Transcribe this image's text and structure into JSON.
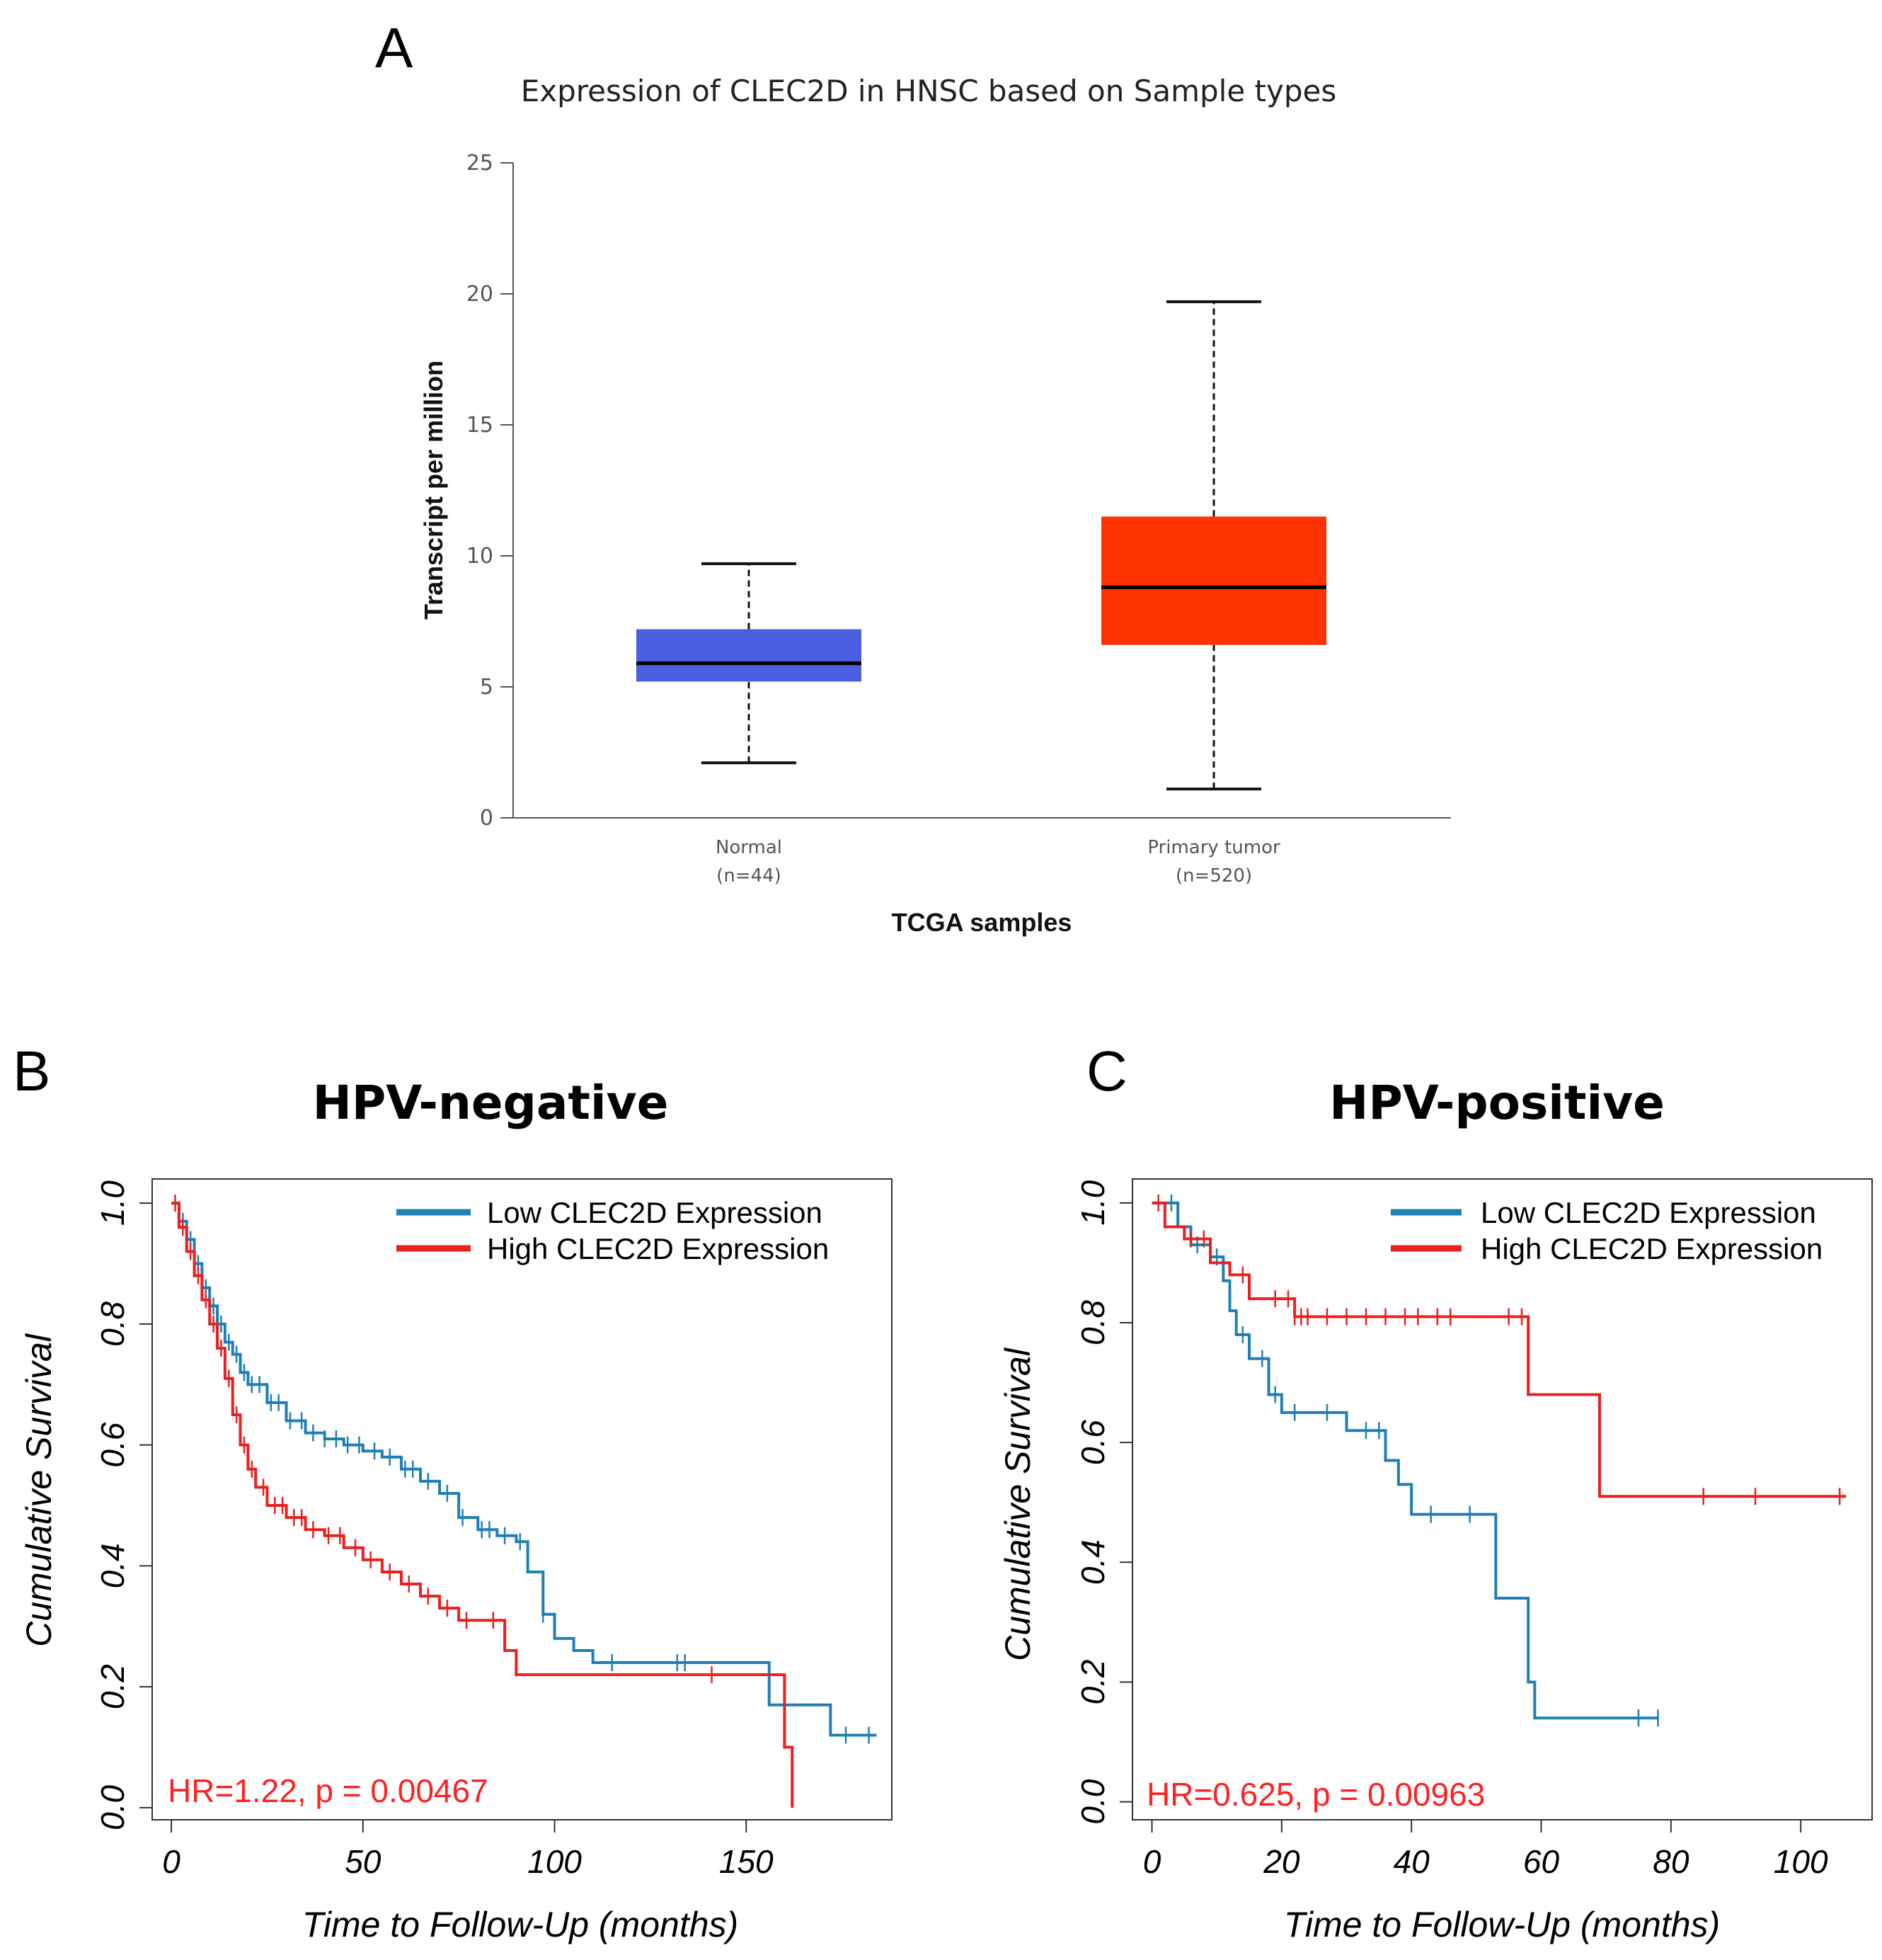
{
  "figure": {
    "panel_letters": [
      "A",
      "B",
      "C"
    ]
  },
  "chart_data": [
    {
      "type": "box",
      "panel": "A",
      "title": "Expression of CLEC2D in HNSC based on Sample types",
      "xlabel": "TCGA samples",
      "ylabel": "Transcript per million",
      "ylim": [
        0,
        25
      ],
      "yticks": [
        0,
        5,
        10,
        15,
        20,
        25
      ],
      "groups": [
        {
          "name": "Normal",
          "n_label": "(n=44)",
          "color": "#4a5fe0",
          "whisker_low": 2.1,
          "q1": 5.2,
          "median": 5.9,
          "q3": 7.2,
          "whisker_high": 9.7
        },
        {
          "name": "Primary tumor",
          "n_label": "(n=520)",
          "color": "#ff3300",
          "whisker_low": 1.1,
          "q1": 6.6,
          "median": 8.8,
          "q3": 11.5,
          "whisker_high": 19.7
        }
      ]
    },
    {
      "type": "line",
      "subtype": "kaplan-meier",
      "panel": "B",
      "title": "HPV-negative",
      "xlabel": "Time to Follow-Up (months)",
      "ylabel": "Cumulative Survival",
      "xlim": [
        -5,
        188
      ],
      "ylim": [
        -0.02,
        1.04
      ],
      "xticks": [
        0,
        50,
        100,
        150
      ],
      "yticks": [
        0.0,
        0.2,
        0.4,
        0.6,
        0.8,
        1.0
      ],
      "ytick_labels": [
        "0.0",
        "0.2",
        "0.4",
        "0.6",
        "0.8",
        "1.0"
      ],
      "annotation": "HR=1.22, p = 0.00467",
      "series": [
        {
          "name": "Low CLEC2D Expression",
          "color": "#1f7fb4",
          "x": [
            0,
            2,
            4,
            6,
            8,
            10,
            12,
            14,
            16,
            18,
            20,
            25,
            30,
            35,
            40,
            45,
            50,
            55,
            60,
            65,
            70,
            75,
            80,
            85,
            90,
            93,
            97,
            100,
            105,
            110,
            130,
            150,
            156,
            160,
            165,
            172,
            180,
            184
          ],
          "y": [
            1.0,
            0.97,
            0.94,
            0.9,
            0.86,
            0.83,
            0.8,
            0.77,
            0.75,
            0.72,
            0.7,
            0.67,
            0.64,
            0.62,
            0.61,
            0.6,
            0.59,
            0.58,
            0.56,
            0.54,
            0.52,
            0.48,
            0.46,
            0.45,
            0.44,
            0.39,
            0.32,
            0.28,
            0.26,
            0.24,
            0.24,
            0.24,
            0.17,
            0.17,
            0.17,
            0.12,
            0.12,
            0.12
          ],
          "censor_x": [
            3,
            5,
            7,
            9,
            11,
            13,
            15,
            17,
            19,
            21,
            23,
            26,
            28,
            31,
            34,
            37,
            40,
            43,
            46,
            49,
            53,
            57,
            61,
            63,
            67,
            72,
            76,
            81,
            83,
            87,
            91,
            97,
            115,
            132,
            134,
            176,
            182
          ]
        },
        {
          "name": "High CLEC2D Expression",
          "color": "#e8211f",
          "x": [
            0,
            2,
            4,
            6,
            8,
            10,
            12,
            14,
            16,
            18,
            20,
            22,
            25,
            30,
            35,
            40,
            45,
            50,
            55,
            60,
            65,
            70,
            75,
            80,
            87,
            90,
            100,
            120,
            140,
            157,
            160,
            161,
            162
          ],
          "y": [
            1.0,
            0.96,
            0.92,
            0.88,
            0.84,
            0.8,
            0.76,
            0.71,
            0.65,
            0.6,
            0.56,
            0.53,
            0.5,
            0.48,
            0.46,
            0.45,
            0.43,
            0.41,
            0.39,
            0.37,
            0.35,
            0.33,
            0.31,
            0.31,
            0.26,
            0.22,
            0.22,
            0.22,
            0.22,
            0.22,
            0.1,
            0.1,
            0.0
          ],
          "censor_x": [
            1,
            3,
            5,
            7,
            9,
            11,
            13,
            15,
            17,
            19,
            21,
            24,
            27,
            29,
            32,
            34,
            37,
            41,
            44,
            48,
            52,
            57,
            62,
            67,
            72,
            77,
            84,
            141
          ]
        }
      ]
    },
    {
      "type": "line",
      "subtype": "kaplan-meier",
      "panel": "C",
      "title": "HPV-positive",
      "xlabel": "Time to Follow-Up (months)",
      "ylabel": "Cumulative Survival",
      "xlim": [
        -3,
        111
      ],
      "ylim": [
        -0.03,
        1.04
      ],
      "xticks": [
        0,
        20,
        40,
        60,
        80,
        100
      ],
      "yticks": [
        0.0,
        0.2,
        0.4,
        0.6,
        0.8,
        1.0
      ],
      "ytick_labels": [
        "0.0",
        "0.2",
        "0.4",
        "0.6",
        "0.8",
        "1.0"
      ],
      "annotation": "HR=0.625, p = 0.00963",
      "series": [
        {
          "name": "Low CLEC2D Expression",
          "color": "#1f7fb4",
          "x": [
            0,
            2,
            4,
            6,
            9,
            11,
            12,
            13,
            15,
            18,
            20,
            24,
            30,
            36,
            38,
            40,
            45,
            50,
            53,
            58,
            59,
            65,
            78
          ],
          "y": [
            1.0,
            1.0,
            0.96,
            0.93,
            0.91,
            0.87,
            0.82,
            0.78,
            0.74,
            0.68,
            0.65,
            0.65,
            0.62,
            0.57,
            0.53,
            0.48,
            0.48,
            0.48,
            0.34,
            0.2,
            0.14,
            0.14,
            0.14
          ],
          "censor_x": [
            3,
            7,
            10,
            14,
            17,
            19,
            22,
            27,
            33,
            35,
            43,
            49,
            75,
            78
          ]
        },
        {
          "name": "High CLEC2D Expression",
          "color": "#e8211f",
          "x": [
            0,
            2,
            5,
            9,
            12,
            15,
            20,
            22,
            30,
            40,
            50,
            58,
            64,
            69,
            80,
            90,
            107
          ],
          "y": [
            1.0,
            0.96,
            0.94,
            0.9,
            0.88,
            0.84,
            0.84,
            0.81,
            0.81,
            0.81,
            0.81,
            0.68,
            0.68,
            0.51,
            0.51,
            0.51,
            0.51
          ],
          "censor_x": [
            1,
            6,
            8,
            14,
            19,
            21,
            22,
            23,
            24,
            27,
            30,
            33,
            36,
            39,
            41,
            44,
            46,
            55,
            57,
            85,
            93,
            106
          ]
        }
      ]
    }
  ]
}
